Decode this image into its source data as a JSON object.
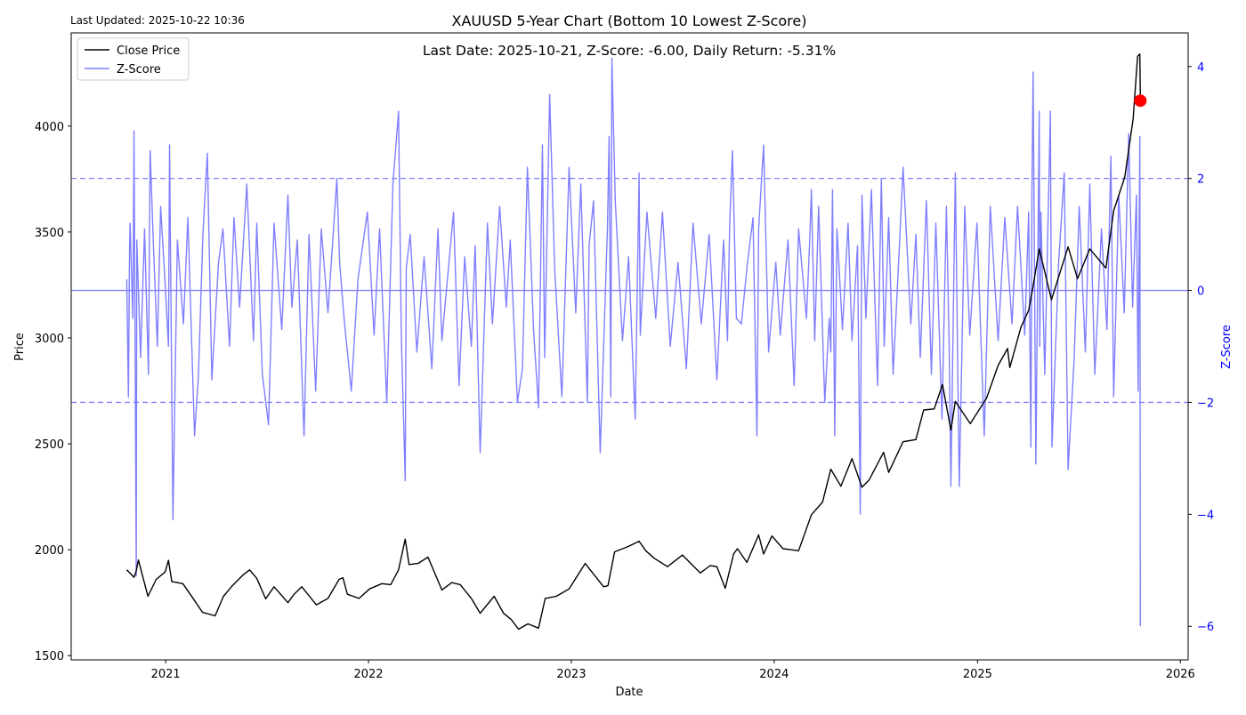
{
  "header": {
    "last_updated": "Last Updated: 2025-10-22 10:36"
  },
  "chart_data": {
    "type": "line",
    "title": "XAUUSD 5-Year Chart (Bottom 10 Lowest Z-Score)",
    "subtitle": "Last Date: 2025-10-21, Z-Score: -6.00, Daily Return: -5.31%",
    "xlabel": "Date",
    "ylabel": "Price",
    "y2label": "Z-Score",
    "xlim": [
      "2020-07-15",
      "2026-01-15"
    ],
    "ylim": [
      1480,
      4440
    ],
    "y2lim": [
      -6.6,
      4.6
    ],
    "x_ticks": [
      "2021",
      "2022",
      "2023",
      "2024",
      "2025",
      "2026"
    ],
    "y_ticks": [
      1500,
      2000,
      2500,
      3000,
      3500,
      4000
    ],
    "y2_ticks": [
      -6,
      -4,
      -2,
      0,
      2,
      4
    ],
    "reference_lines": [
      {
        "axis": "y2",
        "value": 2,
        "style": "dashed"
      },
      {
        "axis": "y2",
        "value": 0,
        "style": "solid"
      },
      {
        "axis": "y2",
        "value": -2,
        "style": "dashed"
      }
    ],
    "grid": false,
    "legend_position": "top-left",
    "colors": {
      "price": "#000000",
      "zscore": "#7f7fff",
      "zscore_axis": "#0000ff",
      "marker": "#ff0000"
    },
    "series": [
      {
        "name": "Close Price",
        "axis": "y",
        "x": [
          "2020-10-23",
          "2020-11-05",
          "2020-11-09",
          "2020-11-13",
          "2020-11-30",
          "2020-12-15",
          "2020-12-31",
          "2021-01-06",
          "2021-01-12",
          "2021-02-01",
          "2021-02-18",
          "2021-03-08",
          "2021-03-31",
          "2021-04-15",
          "2021-05-01",
          "2021-05-20",
          "2021-06-01",
          "2021-06-14",
          "2021-06-30",
          "2021-07-15",
          "2021-08-09",
          "2021-08-20",
          "2021-09-03",
          "2021-09-29",
          "2021-10-20",
          "2021-11-09",
          "2021-11-16",
          "2021-11-24",
          "2021-12-15",
          "2022-01-03",
          "2022-01-25",
          "2022-02-10",
          "2022-02-24",
          "2022-03-08",
          "2022-03-15",
          "2022-03-31",
          "2022-04-18",
          "2022-05-13",
          "2022-05-31",
          "2022-06-15",
          "2022-07-05",
          "2022-07-21",
          "2022-08-15",
          "2022-09-01",
          "2022-09-15",
          "2022-09-28",
          "2022-10-15",
          "2022-11-03",
          "2022-11-15",
          "2022-12-05",
          "2022-12-28",
          "2023-01-26",
          "2023-02-28",
          "2023-03-08",
          "2023-03-20",
          "2023-04-13",
          "2023-05-03",
          "2023-05-15",
          "2023-05-30",
          "2023-06-23",
          "2023-07-20",
          "2023-08-21",
          "2023-09-08",
          "2023-09-20",
          "2023-10-05",
          "2023-10-20",
          "2023-10-27",
          "2023-11-13",
          "2023-12-04",
          "2023-12-13",
          "2023-12-28",
          "2024-01-17",
          "2024-02-14",
          "2024-03-08",
          "2024-03-28",
          "2024-04-12",
          "2024-04-30",
          "2024-05-20",
          "2024-06-07",
          "2024-06-20",
          "2024-07-16",
          "2024-07-25",
          "2024-08-20",
          "2024-09-12",
          "2024-09-26",
          "2024-10-15",
          "2024-10-30",
          "2024-11-14",
          "2024-11-22",
          "2024-12-19",
          "2025-01-17",
          "2025-02-07",
          "2025-02-24",
          "2025-02-28",
          "2025-03-20",
          "2025-04-03",
          "2025-04-10",
          "2025-04-22",
          "2025-05-14",
          "2025-06-13",
          "2025-06-30",
          "2025-07-22",
          "2025-08-20",
          "2025-09-03",
          "2025-09-23",
          "2025-10-08",
          "2025-10-16",
          "2025-10-20",
          "2025-10-21"
        ],
        "values": [
          1905,
          1870,
          1900,
          1952,
          1780,
          1860,
          1895,
          1950,
          1850,
          1840,
          1775,
          1705,
          1688,
          1780,
          1830,
          1880,
          1905,
          1865,
          1768,
          1825,
          1750,
          1790,
          1825,
          1740,
          1770,
          1860,
          1868,
          1790,
          1770,
          1815,
          1840,
          1835,
          1905,
          2050,
          1930,
          1935,
          1965,
          1810,
          1845,
          1835,
          1770,
          1700,
          1780,
          1700,
          1670,
          1625,
          1650,
          1630,
          1770,
          1780,
          1815,
          1935,
          1825,
          1830,
          1990,
          2015,
          2040,
          1995,
          1960,
          1920,
          1975,
          1890,
          1925,
          1920,
          1818,
          1980,
          2005,
          1940,
          2070,
          1980,
          2065,
          2005,
          1995,
          2165,
          2225,
          2380,
          2300,
          2430,
          2295,
          2330,
          2460,
          2365,
          2510,
          2520,
          2660,
          2665,
          2780,
          2565,
          2700,
          2595,
          2715,
          2870,
          2950,
          2860,
          3050,
          3130,
          3230,
          3420,
          3180,
          3430,
          3280,
          3420,
          3330,
          3600,
          3760,
          4035,
          4330,
          4340,
          4120
        ]
      },
      {
        "name": "Z-Score",
        "axis": "y2",
        "x": [
          "2020-10-23",
          "2020-10-26",
          "2020-10-28",
          "2020-10-29",
          "2020-11-03",
          "2020-11-05",
          "2020-11-09",
          "2020-11-10",
          "2020-11-17",
          "2020-11-24",
          "2020-12-01",
          "2020-12-04",
          "2020-12-10",
          "2020-12-17",
          "2020-12-23",
          "2020-12-30",
          "2021-01-06",
          "2021-01-08",
          "2021-01-14",
          "2021-01-22",
          "2021-02-02",
          "2021-02-10",
          "2021-02-22",
          "2021-03-01",
          "2021-03-09",
          "2021-03-17",
          "2021-03-25",
          "2021-04-06",
          "2021-04-14",
          "2021-04-26",
          "2021-05-04",
          "2021-05-14",
          "2021-05-27",
          "2021-06-08",
          "2021-06-14",
          "2021-06-24",
          "2021-07-05",
          "2021-07-15",
          "2021-07-29",
          "2021-08-09",
          "2021-08-16",
          "2021-08-26",
          "2021-09-07",
          "2021-09-16",
          "2021-09-28",
          "2021-10-08",
          "2021-10-20",
          "2021-11-05",
          "2021-11-10",
          "2021-11-18",
          "2021-12-01",
          "2021-12-13",
          "2021-12-30",
          "2022-01-11",
          "2022-01-21",
          "2022-02-03",
          "2022-02-14",
          "2022-02-24",
          "2022-03-01",
          "2022-03-08",
          "2022-03-10",
          "2022-03-17",
          "2022-03-29",
          "2022-04-11",
          "2022-04-25",
          "2022-05-06",
          "2022-05-13",
          "2022-05-24",
          "2022-06-03",
          "2022-06-13",
          "2022-06-23",
          "2022-07-05",
          "2022-07-12",
          "2022-07-21",
          "2022-08-03",
          "2022-08-12",
          "2022-08-25",
          "2022-09-06",
          "2022-09-13",
          "2022-09-26",
          "2022-10-05",
          "2022-10-14",
          "2022-10-25",
          "2022-11-03",
          "2022-11-10",
          "2022-11-14",
          "2022-11-23",
          "2022-12-02",
          "2022-12-15",
          "2022-12-28",
          "2023-01-09",
          "2023-01-18",
          "2023-01-30",
          "2023-02-02",
          "2023-02-10",
          "2023-02-22",
          "2023-03-07",
          "2023-03-10",
          "2023-03-13",
          "2023-03-15",
          "2023-03-21",
          "2023-04-03",
          "2023-04-14",
          "2023-04-26",
          "2023-05-03",
          "2023-05-05",
          "2023-05-17",
          "2023-06-02",
          "2023-06-14",
          "2023-06-28",
          "2023-07-12",
          "2023-07-27",
          "2023-08-08",
          "2023-08-23",
          "2023-09-06",
          "2023-09-20",
          "2023-10-02",
          "2023-10-09",
          "2023-10-13",
          "2023-10-18",
          "2023-10-25",
          "2023-11-03",
          "2023-11-14",
          "2023-11-24",
          "2023-12-01",
          "2023-12-04",
          "2023-12-13",
          "2023-12-22",
          "2024-01-04",
          "2024-01-12",
          "2024-01-26",
          "2024-02-06",
          "2024-02-14",
          "2024-02-28",
          "2024-03-05",
          "2024-03-08",
          "2024-03-14",
          "2024-03-21",
          "2024-04-01",
          "2024-04-09",
          "2024-04-12",
          "2024-04-15",
          "2024-04-19",
          "2024-04-23",
          "2024-05-03",
          "2024-05-13",
          "2024-05-20",
          "2024-05-30",
          "2024-06-04",
          "2024-06-07",
          "2024-06-14",
          "2024-06-24",
          "2024-07-05",
          "2024-07-12",
          "2024-07-17",
          "2024-07-25",
          "2024-08-02",
          "2024-08-14",
          "2024-08-20",
          "2024-09-03",
          "2024-09-12",
          "2024-09-20",
          "2024-10-01",
          "2024-10-10",
          "2024-10-18",
          "2024-10-29",
          "2024-11-06",
          "2024-11-11",
          "2024-11-14",
          "2024-11-22",
          "2024-11-29",
          "2024-12-09",
          "2024-12-18",
          "2024-12-31",
          "2025-01-13",
          "2025-01-24",
          "2025-02-07",
          "2025-02-19",
          "2025-03-04",
          "2025-03-14",
          "2025-03-27",
          "2025-04-03",
          "2025-04-07",
          "2025-04-09",
          "2025-04-11",
          "2025-04-16",
          "2025-04-22",
          "2025-04-23",
          "2025-04-25",
          "2025-05-02",
          "2025-05-12",
          "2025-05-15",
          "2025-05-27",
          "2025-06-06",
          "2025-06-13",
          "2025-06-24",
          "2025-07-03",
          "2025-07-14",
          "2025-07-22",
          "2025-07-31",
          "2025-08-12",
          "2025-08-22",
          "2025-08-29",
          "2025-09-03",
          "2025-09-12",
          "2025-09-22",
          "2025-09-30",
          "2025-10-07",
          "2025-10-14",
          "2025-10-17",
          "2025-10-20",
          "2025-10-21"
        ],
        "values": [
          0.2,
          -1.9,
          0.8,
          1.2,
          -0.5,
          2.85,
          -5.1,
          0.9,
          -1.2,
          1.1,
          -1.5,
          2.5,
          0.8,
          -1.0,
          1.5,
          0.3,
          -1.0,
          2.6,
          -4.1,
          0.9,
          -0.6,
          1.3,
          -2.6,
          -1.5,
          1.0,
          2.45,
          -1.6,
          0.5,
          1.1,
          -1.0,
          1.3,
          -0.3,
          1.9,
          -0.9,
          1.2,
          -1.5,
          -2.4,
          1.2,
          -0.7,
          1.7,
          -0.3,
          0.9,
          -2.6,
          1.0,
          -1.8,
          1.1,
          -0.4,
          2.0,
          0.5,
          -0.5,
          -1.8,
          0.2,
          1.4,
          -0.8,
          1.1,
          -2.0,
          1.9,
          3.2,
          -0.8,
          -3.4,
          0.4,
          1.0,
          -1.1,
          0.6,
          -1.4,
          1.1,
          -0.9,
          0.3,
          1.4,
          -1.7,
          0.6,
          -1.0,
          0.8,
          -2.9,
          1.2,
          -0.6,
          1.5,
          -0.3,
          0.9,
          -2.0,
          -1.4,
          2.2,
          -0.7,
          -2.1,
          2.6,
          -1.2,
          3.5,
          0.4,
          -1.9,
          2.2,
          -0.4,
          1.9,
          -2.0,
          0.8,
          1.6,
          -2.9,
          1.1,
          2.75,
          -1.9,
          4.15,
          1.6,
          -0.9,
          0.6,
          -2.3,
          2.1,
          -0.8,
          1.4,
          -0.5,
          1.4,
          -1.0,
          0.5,
          -1.4,
          1.2,
          -0.6,
          1.0,
          -1.6,
          0.9,
          -0.9,
          1.2,
          2.5,
          -0.5,
          -0.6,
          0.5,
          1.3,
          -2.6,
          1.1,
          2.6,
          -1.1,
          0.5,
          -0.8,
          0.9,
          -1.7,
          1.1,
          -0.5,
          0.9,
          1.8,
          -0.9,
          1.5,
          -2.0,
          -0.5,
          -1.1,
          1.8,
          -2.6,
          1.1,
          -0.7,
          1.2,
          -0.9,
          0.8,
          -4.0,
          1.7,
          -0.5,
          1.8,
          -1.7,
          2.0,
          -1.0,
          1.3,
          -1.5,
          0.9,
          2.2,
          -0.6,
          1.0,
          -1.2,
          1.6,
          -1.5,
          1.2,
          -2.3,
          1.5,
          -1.0,
          -3.5,
          2.1,
          -3.5,
          1.5,
          -0.8,
          1.2,
          -2.6,
          1.5,
          -0.9,
          1.3,
          -0.6,
          1.5,
          -0.8,
          1.4,
          -2.8,
          1.8,
          3.9,
          -3.1,
          3.2,
          -1.0,
          1.4,
          -1.5,
          3.2,
          -2.8,
          0.5,
          2.1,
          -3.2,
          -1.2,
          1.5,
          -1.1,
          1.9,
          -1.5,
          1.1,
          -0.7,
          2.4,
          -1.9,
          1.7,
          -0.4,
          2.8,
          -0.3,
          1.7,
          -1.8,
          2.75,
          -6.0
        ]
      }
    ],
    "highlight_point": {
      "x": "2025-10-21",
      "value": 4120,
      "axis": "y"
    }
  }
}
